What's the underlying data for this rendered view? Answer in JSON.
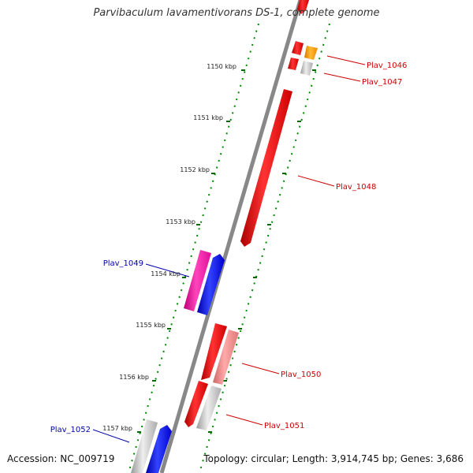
{
  "title": "Parvibaculum lavamentivorans DS-1, complete genome",
  "footer": {
    "accession": "Accession: NC_009719",
    "topology": "Topology: circular; Length: 3,914,745 bp; Genes: 3,686"
  },
  "kbp_ticks": [
    "1150 kbp",
    "1151 kbp",
    "1152 kbp",
    "1153 kbp",
    "1154 kbp",
    "1155 kbp",
    "1156 kbp",
    "1157 kbp"
  ],
  "gene_labels": [
    {
      "text": "Plav_1046",
      "color": "#cc0000"
    },
    {
      "text": "Plav_1047",
      "color": "#cc0000"
    },
    {
      "text": "Plav_1048",
      "color": "#cc0000"
    },
    {
      "text": "Plav_1049",
      "color": "#0000aa"
    },
    {
      "text": "Plav_1050",
      "color": "#cc0000"
    },
    {
      "text": "Plav_1051",
      "color": "#cc0000"
    },
    {
      "text": "Plav_1052",
      "color": "#0000aa"
    }
  ],
  "colors": {
    "backbone": "#888888",
    "dotted_track": "#008800",
    "forward_gene": "#ee0000",
    "reverse_gene": "#0000ee",
    "magenta_gene": "#ee1199",
    "pink_gene": "#ee8888",
    "orange_gene": "#ff9900",
    "gray_gene": "#c0c0c0",
    "label_line_forward": "#cc0000",
    "label_line_reverse": "#0000aa"
  }
}
